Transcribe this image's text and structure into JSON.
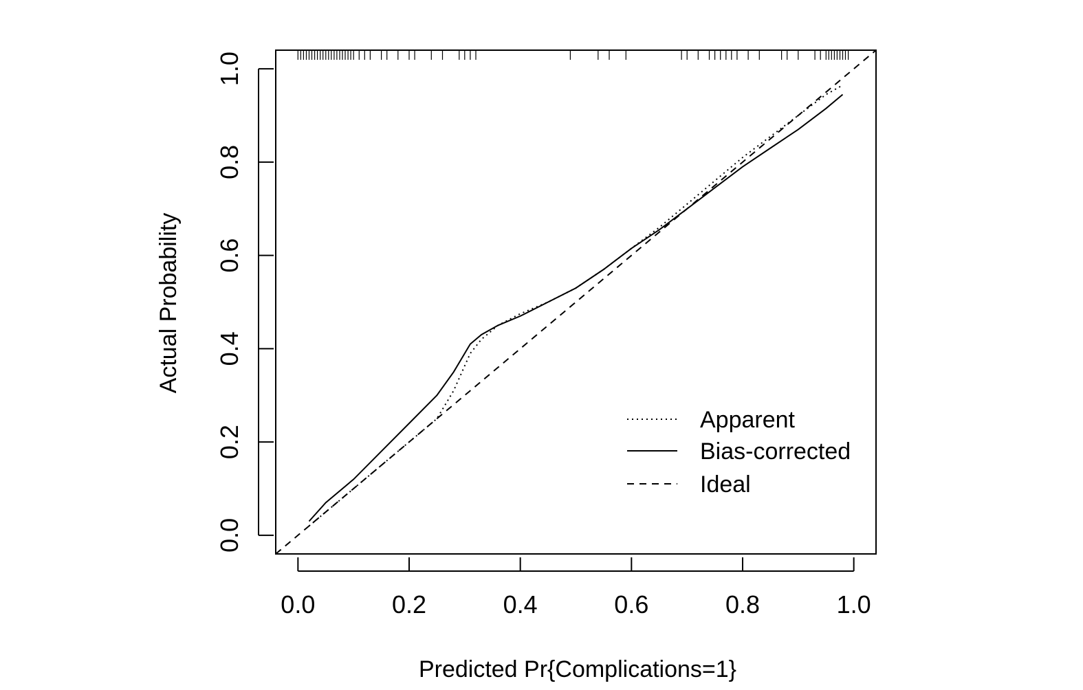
{
  "chart_data": {
    "type": "line",
    "title": "",
    "xlabel": "Predicted Pr{Complications=1}",
    "ylabel": "Actual Probability",
    "xlim": [
      -0.04,
      1.04
    ],
    "ylim": [
      -0.04,
      1.04
    ],
    "xticks": [
      0.0,
      0.2,
      0.4,
      0.6,
      0.8,
      1.0
    ],
    "yticks": [
      0.0,
      0.2,
      0.4,
      0.6,
      0.8,
      1.0
    ],
    "xtick_labels": [
      "0.0",
      "0.2",
      "0.4",
      "0.6",
      "0.8",
      "1.0"
    ],
    "ytick_labels": [
      "0.0",
      "0.2",
      "0.4",
      "0.6",
      "0.8",
      "1.0"
    ],
    "grid": false,
    "legend_position": "bottom-right",
    "series": [
      {
        "name": "Apparent",
        "style": "dotted",
        "x": [
          0.02,
          0.05,
          0.1,
          0.15,
          0.2,
          0.25,
          0.28,
          0.31,
          0.33,
          0.36,
          0.4,
          0.45,
          0.5,
          0.55,
          0.6,
          0.65,
          0.7,
          0.75,
          0.8,
          0.85,
          0.9,
          0.95,
          0.98
        ],
        "y": [
          0.02,
          0.05,
          0.1,
          0.15,
          0.2,
          0.25,
          0.31,
          0.39,
          0.42,
          0.45,
          0.475,
          0.5,
          0.53,
          0.57,
          0.615,
          0.66,
          0.71,
          0.76,
          0.81,
          0.855,
          0.9,
          0.945,
          0.965
        ]
      },
      {
        "name": "Bias-corrected",
        "style": "solid",
        "x": [
          0.02,
          0.05,
          0.1,
          0.15,
          0.2,
          0.25,
          0.28,
          0.3,
          0.31,
          0.33,
          0.36,
          0.4,
          0.45,
          0.5,
          0.55,
          0.6,
          0.65,
          0.7,
          0.75,
          0.8,
          0.85,
          0.9,
          0.95,
          0.98
        ],
        "y": [
          0.03,
          0.07,
          0.12,
          0.18,
          0.24,
          0.3,
          0.35,
          0.39,
          0.41,
          0.43,
          0.45,
          0.47,
          0.5,
          0.53,
          0.57,
          0.615,
          0.655,
          0.7,
          0.745,
          0.79,
          0.83,
          0.87,
          0.915,
          0.945
        ]
      },
      {
        "name": "Ideal",
        "style": "dashed",
        "x": [
          -0.04,
          1.04
        ],
        "y": [
          -0.04,
          1.04
        ]
      }
    ],
    "rug_top": [
      0.0,
      0.005,
      0.01,
      0.015,
      0.02,
      0.025,
      0.03,
      0.035,
      0.04,
      0.045,
      0.05,
      0.055,
      0.06,
      0.065,
      0.07,
      0.075,
      0.08,
      0.085,
      0.09,
      0.095,
      0.1,
      0.11,
      0.12,
      0.13,
      0.15,
      0.16,
      0.18,
      0.2,
      0.21,
      0.24,
      0.26,
      0.29,
      0.3,
      0.31,
      0.32,
      0.49,
      0.54,
      0.56,
      0.59,
      0.69,
      0.7,
      0.72,
      0.74,
      0.75,
      0.76,
      0.77,
      0.78,
      0.79,
      0.81,
      0.83,
      0.87,
      0.88,
      0.9,
      0.93,
      0.94,
      0.95,
      0.955,
      0.96,
      0.965,
      0.97,
      0.975,
      0.98,
      0.985,
      0.99
    ]
  },
  "legend": {
    "items": [
      {
        "label": "Apparent",
        "style": "dotted"
      },
      {
        "label": "Bias-corrected",
        "style": "solid"
      },
      {
        "label": "Ideal",
        "style": "dashed"
      }
    ]
  },
  "colors": {
    "line": "#000000",
    "background": "#ffffff"
  }
}
